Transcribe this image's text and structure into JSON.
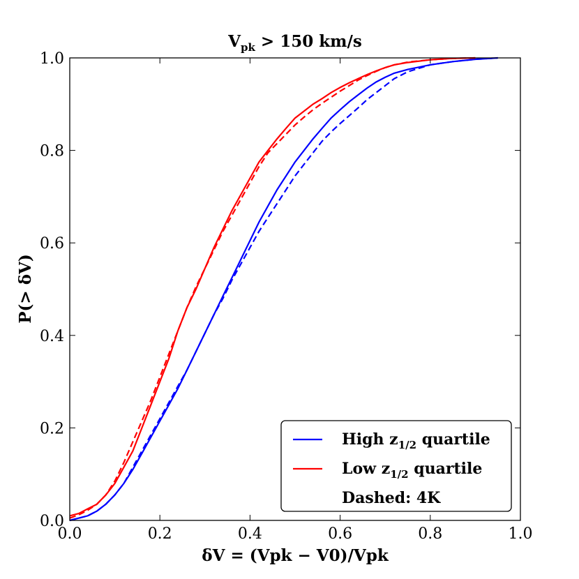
{
  "chart_data": {
    "type": "line",
    "title": {
      "main": "V",
      "sub": "pk",
      "rest": " > 150 km/s"
    },
    "xlabel": "δV = (Vpk − V0)/Vpk",
    "ylabel": "P(> δV)",
    "xlim": [
      0.0,
      1.0
    ],
    "ylim": [
      0.0,
      1.0
    ],
    "xticks": [
      0.0,
      0.2,
      0.4,
      0.6,
      0.8,
      1.0
    ],
    "yticks": [
      0.0,
      0.2,
      0.4,
      0.6,
      0.8,
      1.0
    ],
    "grid": false,
    "legend_position": "bottom-right",
    "legend": [
      {
        "text": "High z",
        "sub": "1/2",
        "rest": " quartile",
        "color": "#0000ff",
        "line": true
      },
      {
        "text": "Low z",
        "sub": "1/2",
        "rest": " quartile",
        "color": "#ff0000",
        "line": true
      },
      {
        "text": "Dashed: 4K",
        "sub": "",
        "rest": "",
        "color": "#000000",
        "line": false
      }
    ],
    "series": [
      {
        "name": "High z1/2 quartile",
        "color": "#0000ff",
        "dash": false,
        "x": [
          0.0,
          0.02,
          0.04,
          0.06,
          0.08,
          0.1,
          0.12,
          0.14,
          0.16,
          0.18,
          0.2,
          0.22,
          0.24,
          0.26,
          0.28,
          0.3,
          0.32,
          0.34,
          0.36,
          0.38,
          0.4,
          0.42,
          0.44,
          0.46,
          0.48,
          0.5,
          0.52,
          0.54,
          0.56,
          0.58,
          0.6,
          0.62,
          0.64,
          0.66,
          0.68,
          0.7,
          0.72,
          0.75,
          0.8,
          0.85,
          0.9,
          0.95
        ],
        "y": [
          0.0,
          0.005,
          0.01,
          0.02,
          0.035,
          0.055,
          0.08,
          0.11,
          0.145,
          0.18,
          0.215,
          0.25,
          0.285,
          0.325,
          0.365,
          0.405,
          0.445,
          0.485,
          0.525,
          0.565,
          0.605,
          0.645,
          0.68,
          0.715,
          0.745,
          0.775,
          0.8,
          0.825,
          0.848,
          0.87,
          0.888,
          0.905,
          0.92,
          0.935,
          0.948,
          0.958,
          0.967,
          0.975,
          0.985,
          0.992,
          0.997,
          1.0
        ]
      },
      {
        "name": "High z1/2 quartile (4K)",
        "color": "#0000ff",
        "dash": true,
        "x": [
          0.0,
          0.02,
          0.04,
          0.06,
          0.08,
          0.1,
          0.12,
          0.14,
          0.16,
          0.18,
          0.2,
          0.22,
          0.24,
          0.26,
          0.28,
          0.3,
          0.32,
          0.34,
          0.36,
          0.38,
          0.4,
          0.42,
          0.44,
          0.46,
          0.48,
          0.5,
          0.52,
          0.54,
          0.56,
          0.58,
          0.6,
          0.62,
          0.64,
          0.66,
          0.68,
          0.7,
          0.72,
          0.75,
          0.8,
          0.85,
          0.9,
          0.95
        ],
        "y": [
          0.0,
          0.005,
          0.01,
          0.02,
          0.035,
          0.055,
          0.08,
          0.115,
          0.15,
          0.185,
          0.22,
          0.255,
          0.29,
          0.325,
          0.365,
          0.405,
          0.445,
          0.48,
          0.52,
          0.555,
          0.59,
          0.625,
          0.655,
          0.685,
          0.715,
          0.745,
          0.77,
          0.795,
          0.82,
          0.84,
          0.858,
          0.875,
          0.892,
          0.91,
          0.925,
          0.94,
          0.955,
          0.97,
          0.985,
          0.992,
          0.997,
          1.0
        ]
      },
      {
        "name": "Low z1/2 quartile",
        "color": "#ff0000",
        "dash": false,
        "x": [
          0.0,
          0.02,
          0.04,
          0.06,
          0.08,
          0.1,
          0.12,
          0.14,
          0.16,
          0.18,
          0.2,
          0.22,
          0.24,
          0.26,
          0.28,
          0.3,
          0.32,
          0.34,
          0.36,
          0.38,
          0.4,
          0.42,
          0.44,
          0.46,
          0.48,
          0.5,
          0.52,
          0.54,
          0.56,
          0.58,
          0.6,
          0.62,
          0.64,
          0.66,
          0.68,
          0.7,
          0.72,
          0.75,
          0.8,
          0.85,
          0.9
        ],
        "y": [
          0.01,
          0.015,
          0.025,
          0.035,
          0.055,
          0.08,
          0.115,
          0.15,
          0.2,
          0.25,
          0.3,
          0.35,
          0.41,
          0.46,
          0.5,
          0.545,
          0.59,
          0.63,
          0.67,
          0.705,
          0.74,
          0.775,
          0.8,
          0.825,
          0.848,
          0.87,
          0.885,
          0.9,
          0.912,
          0.925,
          0.936,
          0.946,
          0.955,
          0.964,
          0.972,
          0.979,
          0.985,
          0.99,
          0.996,
          0.999,
          1.0
        ]
      },
      {
        "name": "Low z1/2 quartile (4K)",
        "color": "#ff0000",
        "dash": true,
        "x": [
          0.0,
          0.02,
          0.04,
          0.06,
          0.08,
          0.1,
          0.12,
          0.14,
          0.16,
          0.18,
          0.2,
          0.22,
          0.24,
          0.26,
          0.28,
          0.3,
          0.32,
          0.34,
          0.36,
          0.38,
          0.4,
          0.42,
          0.44,
          0.46,
          0.48,
          0.5,
          0.52,
          0.54,
          0.56,
          0.58,
          0.6,
          0.62,
          0.64,
          0.66,
          0.68,
          0.7,
          0.72,
          0.75,
          0.8,
          0.85,
          0.9
        ],
        "y": [
          0.005,
          0.012,
          0.022,
          0.035,
          0.055,
          0.085,
          0.125,
          0.17,
          0.215,
          0.26,
          0.31,
          0.36,
          0.41,
          0.46,
          0.505,
          0.545,
          0.585,
          0.625,
          0.66,
          0.695,
          0.73,
          0.765,
          0.795,
          0.815,
          0.835,
          0.855,
          0.872,
          0.888,
          0.902,
          0.915,
          0.928,
          0.94,
          0.952,
          0.962,
          0.971,
          0.979,
          0.985,
          0.991,
          0.996,
          0.999,
          1.0
        ]
      }
    ]
  }
}
